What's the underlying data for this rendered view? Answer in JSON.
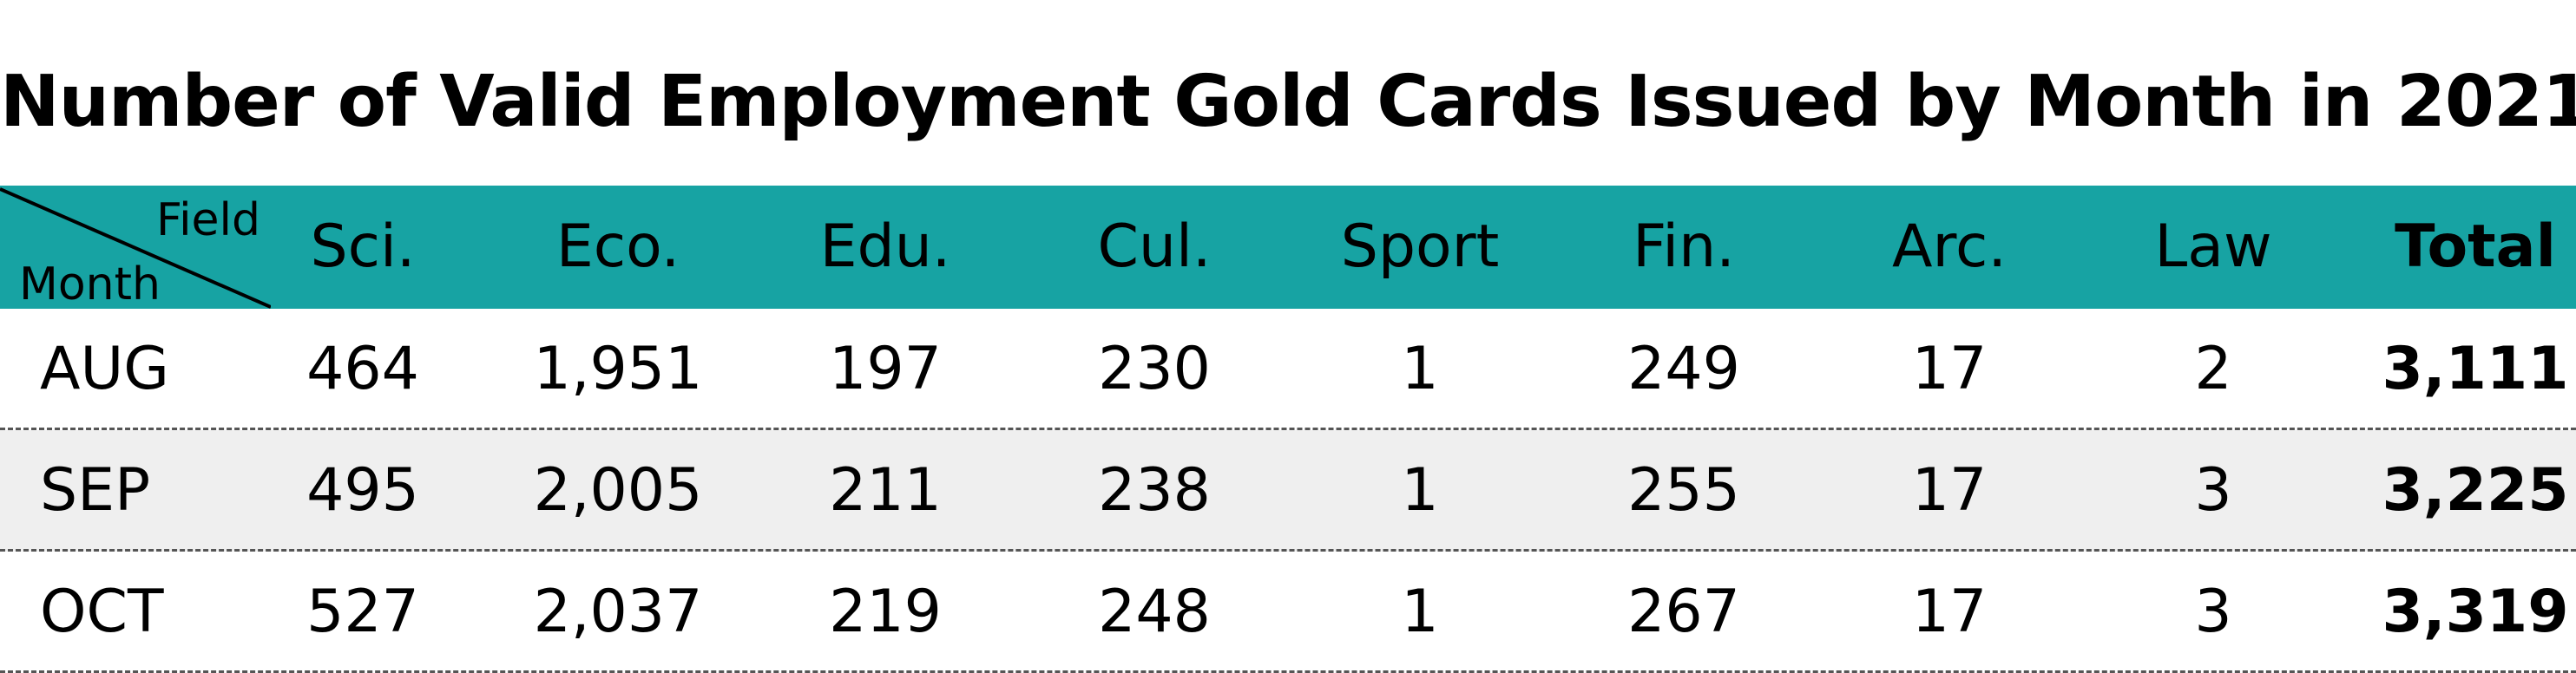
{
  "chart_data": {
    "type": "table",
    "title": "Number of Valid Employment Gold Cards Issued by Month in 2021",
    "corner": {
      "column_label": "Field",
      "row_label": "Month"
    },
    "columns": [
      "Sci.",
      "Eco.",
      "Edu.",
      "Cul.",
      "Sport",
      "Fin.",
      "Arc.",
      "Law",
      "Total"
    ],
    "rows": [
      {
        "month": "AUG",
        "values": [
          "464",
          "1,951",
          "197",
          "230",
          "1",
          "249",
          "17",
          "2",
          "3,111"
        ]
      },
      {
        "month": "SEP",
        "values": [
          "495",
          "2,005",
          "211",
          "238",
          "1",
          "255",
          "17",
          "3",
          "3,225"
        ]
      },
      {
        "month": "OCT",
        "values": [
          "527",
          "2,037",
          "219",
          "248",
          "1",
          "267",
          "17",
          "3",
          "3,319"
        ]
      }
    ],
    "colors": {
      "header_bg": "#17a3a3",
      "stripe_bg": "#efefef",
      "row_bg": "#ffffff",
      "separator": "#555555"
    }
  }
}
